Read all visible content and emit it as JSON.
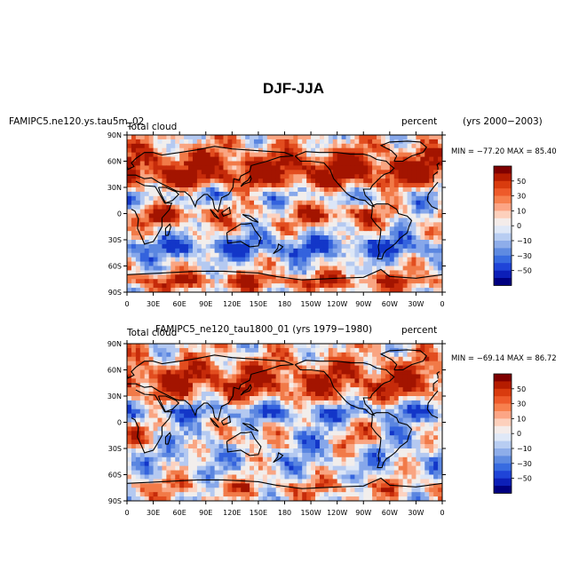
{
  "title": "DJF-JJA",
  "panels": [
    {
      "case_label": "FAMIPC5.ne120.ys.tau5m_02",
      "variable": "Total cloud",
      "units": "percent",
      "years": "(yrs 2000−2003)",
      "minmax": "MIN = −77.20 MAX =  85.40"
    },
    {
      "case_label": "FAMIPC5_ne120_tau1800_01  (yrs 1979−1980)",
      "variable": "Total cloud",
      "units": "percent",
      "years": "",
      "minmax": "MIN = −69.14 MAX =  86.72"
    }
  ],
  "lat_ticks": [
    "90N",
    "60N",
    "30N",
    "0",
    "30S",
    "60S",
    "90S"
  ],
  "lon_ticks": [
    "0",
    "30E",
    "60E",
    "90E",
    "120E",
    "150E",
    "180",
    "150W",
    "120W",
    "90W",
    "60W",
    "30W",
    "0"
  ],
  "colorbar": {
    "labels": [
      "50",
      "30",
      "10",
      "0",
      "−10",
      "−30",
      "−50"
    ],
    "colors": [
      "#7f0000",
      "#b51c00",
      "#d93b0e",
      "#ee5a2a",
      "#f7804e",
      "#fca585",
      "#fdd0bc",
      "#f4ecea",
      "#dfe8f7",
      "#b8cdf2",
      "#8eadea",
      "#5f8be1",
      "#386be0",
      "#1f44d8",
      "#0c1fb8",
      "#000080"
    ]
  },
  "palette": {
    "red": [
      "#a31400",
      "#c62b0a",
      "#e24d1f",
      "#f17a48",
      "#f9a582",
      "#fcd2c0"
    ],
    "blue": [
      "#dce6f7",
      "#b4c9f1",
      "#86a7ea",
      "#5b86e0",
      "#3463dd",
      "#1336c8"
    ],
    "neutral": "#f2eeec"
  }
}
